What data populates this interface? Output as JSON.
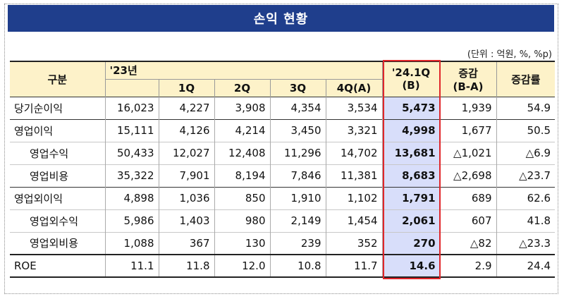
{
  "title": "손익 현황",
  "unit": "(단위 : 억원, %, %p)",
  "header": {
    "category": "구분",
    "year23": "'23년",
    "q1": "1Q",
    "q2": "2Q",
    "q3": "3Q",
    "q4": "4Q(A)",
    "q24_line1": "'24.1Q",
    "q24_line2": "(B)",
    "change_line1": "증감",
    "change_line2": "(B-A)",
    "rate": "증감률"
  },
  "rows": [
    {
      "label": "당기순이익",
      "y23": "16,023",
      "q1": "4,227",
      "q2": "3,908",
      "q3": "4,354",
      "q4": "3,534",
      "q24": "5,473",
      "change": "1,939",
      "rate": "54.9"
    },
    {
      "label": "영업이익",
      "y23": "15,111",
      "q1": "4,126",
      "q2": "4,214",
      "q3": "3,450",
      "q4": "3,321",
      "q24": "4,998",
      "change": "1,677",
      "rate": "50.5"
    },
    {
      "label": "영업수익",
      "y23": "50,433",
      "q1": "12,027",
      "q2": "12,408",
      "q3": "11,296",
      "q4": "14,702",
      "q24": "13,681",
      "change": "△1,021",
      "rate": "△6.9"
    },
    {
      "label": "영업비용",
      "y23": "35,322",
      "q1": "7,901",
      "q2": "8,194",
      "q3": "7,846",
      "q4": "11,381",
      "q24": "8,683",
      "change": "△2,698",
      "rate": "△23.7"
    },
    {
      "label": "영업외이익",
      "y23": "4,898",
      "q1": "1,036",
      "q2": "850",
      "q3": "1,910",
      "q4": "1,102",
      "q24": "1,791",
      "change": "689",
      "rate": "62.6"
    },
    {
      "label": "영업외수익",
      "y23": "5,986",
      "q1": "1,403",
      "q2": "980",
      "q3": "2,149",
      "q4": "1,454",
      "q24": "2,061",
      "change": "607",
      "rate": "41.8"
    },
    {
      "label": "영업외비용",
      "y23": "1,088",
      "q1": "367",
      "q2": "130",
      "q3": "239",
      "q4": "352",
      "q24": "270",
      "change": "△82",
      "rate": "△23.3"
    },
    {
      "label": "ROE",
      "y23": "11.1",
      "q1": "11.8",
      "q2": "12.0",
      "q3": "10.8",
      "q4": "11.7",
      "q24": "14.6",
      "change": "2.9",
      "rate": "24.4"
    }
  ],
  "colors": {
    "title_bg": "#1f3e8c",
    "header_bg": "#fdf2c9",
    "highlight_bg": "#d8defa",
    "highlight_border": "#e0262a"
  }
}
